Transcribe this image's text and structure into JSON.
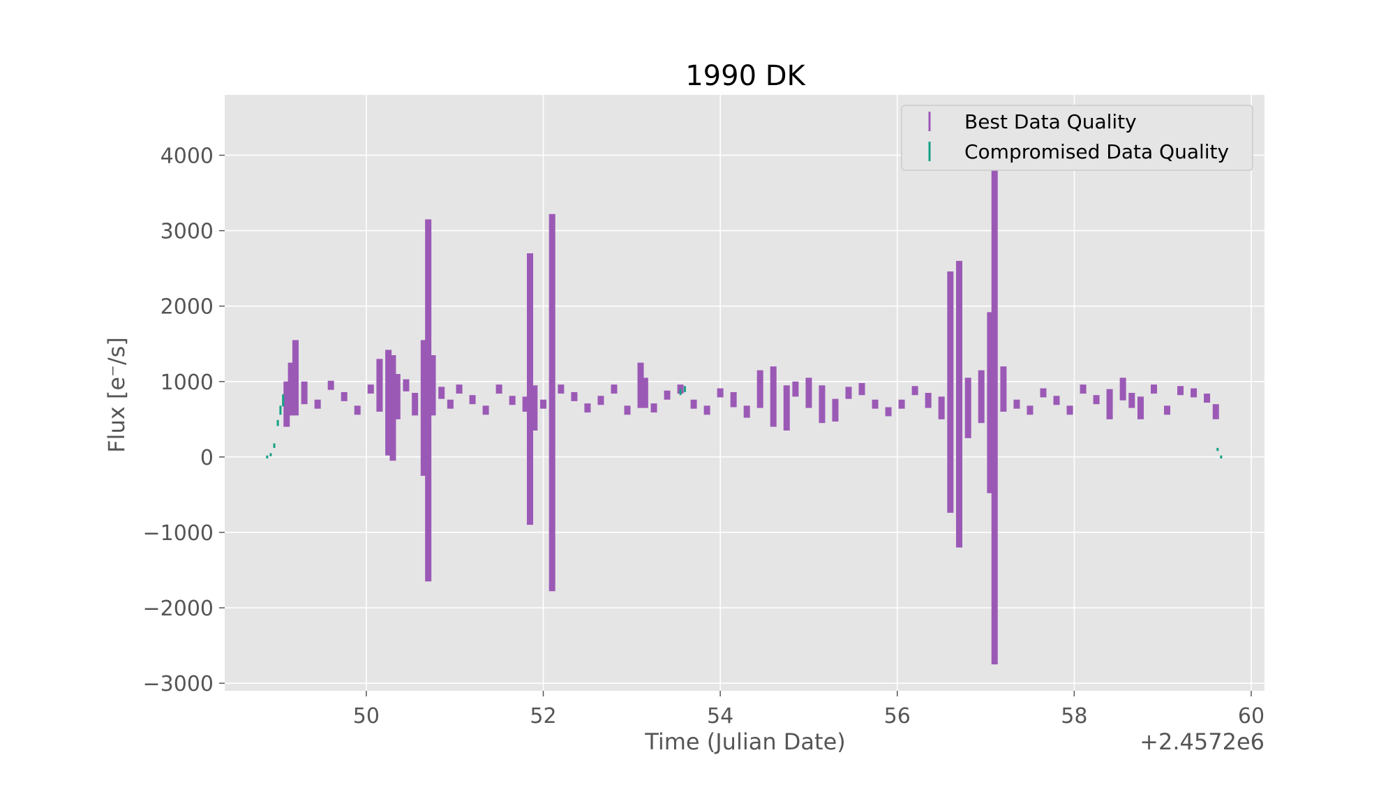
{
  "chart_data": {
    "type": "scatter",
    "title": "1990 DK",
    "xlabel": "Time (Julian Date)",
    "ylabel": "Flux [e⁻/s]",
    "x_offset_label": "+2.4572e6",
    "xlim": [
      48.4,
      60.15
    ],
    "ylim": [
      -3100,
      4800
    ],
    "xticks": [
      50,
      52,
      54,
      56,
      58,
      60
    ],
    "xtick_labels": [
      "50",
      "52",
      "54",
      "56",
      "58",
      "60"
    ],
    "yticks": [
      -3000,
      -2000,
      -1000,
      0,
      1000,
      2000,
      3000,
      4000
    ],
    "ytick_labels": [
      "−3000",
      "−2000",
      "−1000",
      "0",
      "1000",
      "2000",
      "3000",
      "4000"
    ],
    "grid": true,
    "legend_position": "top-right",
    "colors": {
      "background": "#e5e5e5",
      "grid": "#ffffff",
      "best": "#9b59b6",
      "compromised": "#16a085"
    },
    "series": [
      {
        "name": "Best Data Quality",
        "color": "#9b59b6",
        "x": [
          49.1,
          49.15,
          49.2,
          49.3,
          49.45,
          49.6,
          49.75,
          49.9,
          50.05,
          50.15,
          50.25,
          50.3,
          50.35,
          50.45,
          50.55,
          50.65,
          50.7,
          50.75,
          50.85,
          50.95,
          51.05,
          51.2,
          51.35,
          51.5,
          51.65,
          51.8,
          51.85,
          51.9,
          52.0,
          52.1,
          52.2,
          52.35,
          52.5,
          52.65,
          52.8,
          52.95,
          53.1,
          53.15,
          53.25,
          53.4,
          53.55,
          53.7,
          53.85,
          54.0,
          54.15,
          54.3,
          54.45,
          54.6,
          54.75,
          54.85,
          55.0,
          55.15,
          55.3,
          55.45,
          55.6,
          55.75,
          55.9,
          56.05,
          56.2,
          56.35,
          56.5,
          56.6,
          56.7,
          56.8,
          56.95,
          57.05,
          57.1,
          57.2,
          57.35,
          57.5,
          57.65,
          57.8,
          57.95,
          58.1,
          58.25,
          58.4,
          58.55,
          58.65,
          58.75,
          58.9,
          59.05,
          59.2,
          59.35,
          59.5,
          59.6
        ],
        "y": [
          700,
          900,
          1050,
          850,
          700,
          950,
          800,
          620,
          900,
          950,
          720,
          650,
          800,
          950,
          700,
          650,
          750,
          950,
          850,
          700,
          900,
          760,
          620,
          900,
          750,
          700,
          900,
          650,
          700,
          720,
          900,
          800,
          650,
          750,
          900,
          620,
          950,
          850,
          650,
          820,
          900,
          700,
          620,
          850,
          760,
          600,
          900,
          800,
          650,
          900,
          850,
          700,
          620,
          850,
          900,
          700,
          600,
          700,
          880,
          750,
          650,
          860,
          700,
          650,
          800,
          720,
          750,
          900,
          700,
          620,
          850,
          750,
          620,
          900,
          760,
          700,
          900,
          750,
          650,
          900,
          620,
          880,
          850,
          780,
          600
        ],
        "err": [
          300,
          350,
          500,
          150,
          60,
          60,
          60,
          60,
          60,
          350,
          700,
          700,
          300,
          80,
          150,
          900,
          2400,
          400,
          80,
          60,
          60,
          60,
          60,
          60,
          60,
          100,
          1800,
          300,
          60,
          2500,
          60,
          60,
          60,
          60,
          60,
          60,
          300,
          200,
          60,
          60,
          60,
          60,
          60,
          60,
          100,
          80,
          250,
          400,
          300,
          100,
          200,
          250,
          150,
          80,
          80,
          60,
          60,
          60,
          60,
          100,
          150,
          1600,
          1900,
          400,
          350,
          1200,
          3500,
          300,
          60,
          60,
          60,
          60,
          60,
          60,
          60,
          200,
          150,
          100,
          150,
          60,
          60,
          60,
          60,
          60,
          100
        ]
      },
      {
        "name": "Compromised Data Quality",
        "color": "#16a085",
        "x": [
          48.88,
          48.92,
          48.96,
          49.0,
          49.03,
          49.06,
          53.55,
          53.6,
          59.62,
          59.66
        ],
        "y": [
          0,
          30,
          150,
          450,
          620,
          750,
          860,
          900,
          100,
          0
        ],
        "err": [
          20,
          20,
          30,
          40,
          60,
          80,
          40,
          40,
          20,
          20
        ]
      }
    ]
  }
}
